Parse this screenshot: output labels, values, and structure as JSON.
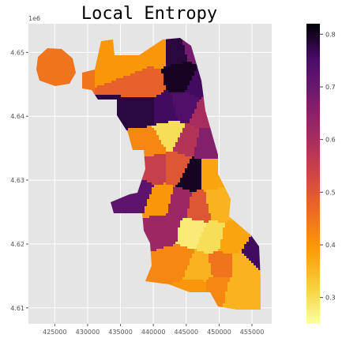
{
  "chart_data": {
    "type": "choropleth",
    "title": "Local Entropy",
    "colormap": "inferno_r",
    "background": "#e5e5e5",
    "grid": true,
    "x_ticks": [
      425000,
      430000,
      435000,
      440000,
      445000,
      450000,
      455000
    ],
    "x_tick_labels": [
      "425000",
      "430000",
      "435000",
      "440000",
      "445000",
      "450000",
      "455000"
    ],
    "xlim": [
      421000,
      458000
    ],
    "y_ticks": [
      4.61,
      4.62,
      4.63,
      4.64,
      4.65
    ],
    "y_tick_labels": [
      "4.61",
      "4.62",
      "4.63",
      "4.64",
      "4.65"
    ],
    "ylim": [
      4.6075,
      4.6545
    ],
    "y_offset_text": "1e6",
    "colorbar": {
      "range": [
        0.25,
        0.82
      ],
      "ticks": [
        0.3,
        0.4,
        0.5,
        0.6,
        0.7,
        0.8
      ],
      "tick_labels": [
        "0.3",
        "0.4",
        "0.5",
        "0.6",
        "0.7",
        "0.8"
      ]
    },
    "regions": [
      {
        "x": 424800,
        "y": 4.6485,
        "v": 0.45
      },
      {
        "x": 436700,
        "y": 4.649,
        "v": 0.4
      },
      {
        "x": 440500,
        "y": 4.6505,
        "v": 0.4
      },
      {
        "x": 443300,
        "y": 4.6505,
        "v": 0.78
      },
      {
        "x": 445900,
        "y": 4.651,
        "v": 0.68
      },
      {
        "x": 438400,
        "y": 4.6455,
        "v": 0.48
      },
      {
        "x": 444300,
        "y": 4.6465,
        "v": 0.8
      },
      {
        "x": 446900,
        "y": 4.6455,
        "v": 0.76
      },
      {
        "x": 438200,
        "y": 4.641,
        "v": 0.78
      },
      {
        "x": 441600,
        "y": 4.641,
        "v": 0.76
      },
      {
        "x": 444600,
        "y": 4.6415,
        "v": 0.74
      },
      {
        "x": 447400,
        "y": 4.6405,
        "v": 0.6
      },
      {
        "x": 439000,
        "y": 4.636,
        "v": 0.42
      },
      {
        "x": 442400,
        "y": 4.6375,
        "v": 0.3
      },
      {
        "x": 445000,
        "y": 4.6365,
        "v": 0.58
      },
      {
        "x": 447900,
        "y": 4.636,
        "v": 0.66
      },
      {
        "x": 440000,
        "y": 4.632,
        "v": 0.55
      },
      {
        "x": 443200,
        "y": 4.632,
        "v": 0.5
      },
      {
        "x": 445700,
        "y": 4.631,
        "v": 0.8
      },
      {
        "x": 448200,
        "y": 4.631,
        "v": 0.38
      },
      {
        "x": 437400,
        "y": 4.628,
        "v": 0.72
      },
      {
        "x": 440900,
        "y": 4.627,
        "v": 0.4
      },
      {
        "x": 443800,
        "y": 4.6265,
        "v": 0.62
      },
      {
        "x": 446700,
        "y": 4.626,
        "v": 0.5
      },
      {
        "x": 449500,
        "y": 4.6265,
        "v": 0.36
      },
      {
        "x": 441700,
        "y": 4.6225,
        "v": 0.62
      },
      {
        "x": 445500,
        "y": 4.622,
        "v": 0.28
      },
      {
        "x": 448700,
        "y": 4.621,
        "v": 0.3
      },
      {
        "x": 451600,
        "y": 4.6205,
        "v": 0.38
      },
      {
        "x": 443600,
        "y": 4.6175,
        "v": 0.42
      },
      {
        "x": 446800,
        "y": 4.6165,
        "v": 0.36
      },
      {
        "x": 450200,
        "y": 4.617,
        "v": 0.45
      },
      {
        "x": 453400,
        "y": 4.617,
        "v": 0.36
      },
      {
        "x": 446400,
        "y": 4.6125,
        "v": 0.4
      },
      {
        "x": 449600,
        "y": 4.613,
        "v": 0.42
      },
      {
        "x": 452300,
        "y": 4.6125,
        "v": 0.36
      },
      {
        "x": 455200,
        "y": 4.6185,
        "v": 0.76
      }
    ]
  }
}
